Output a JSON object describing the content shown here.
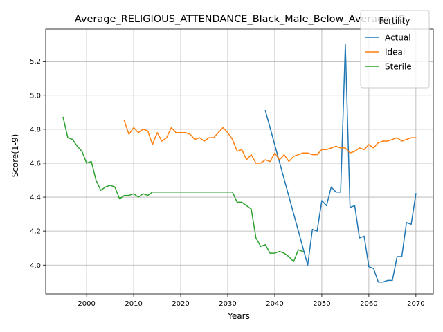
{
  "chart_data": {
    "type": "line",
    "title": "Average_RELIGIOUS_ATTENDANCE_Black_Male_Below_Average_IQ",
    "xlabel": "Years",
    "ylabel": "Score(1-9)",
    "xlim": [
      1991.3,
      2073.7
    ],
    "ylim": [
      3.83,
      5.39
    ],
    "xticks": [
      2000,
      2010,
      2020,
      2030,
      2040,
      2050,
      2060,
      2070
    ],
    "yticks": [
      4.0,
      4.2,
      4.4,
      4.6,
      4.8,
      5.0,
      5.2
    ],
    "ytick_labels": [
      "4.0",
      "4.2",
      "4.4",
      "4.6",
      "4.8",
      "5.0",
      "5.2"
    ],
    "grid": true,
    "legend": {
      "title": "Fertility",
      "position": "top-right"
    },
    "series": [
      {
        "name": "Actual",
        "color": "#1f77b4",
        "x": [
          2038,
          2047,
          2048,
          2049,
          2050,
          2051,
          2052,
          2053,
          2054,
          2055,
          2056,
          2057,
          2058,
          2059,
          2060,
          2061,
          2062,
          2063,
          2064,
          2065,
          2066,
          2067,
          2068,
          2069,
          2070
        ],
        "y": [
          4.91,
          4.0,
          4.21,
          4.2,
          4.38,
          4.35,
          4.46,
          4.43,
          4.43,
          5.3,
          4.34,
          4.35,
          4.16,
          4.17,
          3.99,
          3.98,
          3.9,
          3.9,
          3.91,
          3.91,
          4.05,
          4.05,
          4.25,
          4.24,
          4.42
        ]
      },
      {
        "name": "Ideal",
        "color": "#ff7f0e",
        "x": [
          2008,
          2009,
          2010,
          2011,
          2012,
          2013,
          2014,
          2015,
          2016,
          2017,
          2018,
          2019,
          2020,
          2021,
          2022,
          2023,
          2024,
          2025,
          2026,
          2027,
          2028,
          2029,
          2030,
          2031,
          2032,
          2033,
          2034,
          2035,
          2036,
          2037,
          2038,
          2039,
          2040,
          2041,
          2042,
          2043,
          2044,
          2045,
          2046,
          2047,
          2048,
          2049,
          2050,
          2051,
          2052,
          2053,
          2054,
          2055,
          2056,
          2057,
          2058,
          2059,
          2060,
          2061,
          2062,
          2063,
          2064,
          2065,
          2066,
          2067,
          2068,
          2069,
          2070
        ],
        "y": [
          4.85,
          4.77,
          4.81,
          4.78,
          4.8,
          4.79,
          4.71,
          4.78,
          4.73,
          4.75,
          4.81,
          4.78,
          4.78,
          4.78,
          4.77,
          4.74,
          4.75,
          4.73,
          4.75,
          4.75,
          4.78,
          4.81,
          4.78,
          4.74,
          4.67,
          4.68,
          4.62,
          4.65,
          4.6,
          4.6,
          4.62,
          4.61,
          4.66,
          4.62,
          4.65,
          4.61,
          4.64,
          4.65,
          4.66,
          4.66,
          4.65,
          4.65,
          4.68,
          4.68,
          4.69,
          4.7,
          4.69,
          4.69,
          4.66,
          4.67,
          4.69,
          4.68,
          4.71,
          4.69,
          4.72,
          4.73,
          4.73,
          4.74,
          4.75,
          4.73,
          4.74,
          4.75,
          4.75
        ]
      },
      {
        "name": "Sterile",
        "color": "#2ca02c",
        "x": [
          1995,
          1996,
          1997,
          1998,
          1999,
          2000,
          2001,
          2002,
          2003,
          2004,
          2005,
          2006,
          2007,
          2008,
          2009,
          2010,
          2011,
          2012,
          2013,
          2014,
          2015,
          2016,
          2017,
          2018,
          2019,
          2020,
          2021,
          2022,
          2023,
          2024,
          2025,
          2026,
          2027,
          2028,
          2029,
          2030,
          2031,
          2032,
          2033,
          2034,
          2035,
          2036,
          2037,
          2038,
          2039,
          2040,
          2041,
          2042,
          2043,
          2044,
          2045,
          2046
        ],
        "y": [
          4.87,
          4.75,
          4.74,
          4.7,
          4.67,
          4.6,
          4.61,
          4.5,
          4.44,
          4.46,
          4.47,
          4.46,
          4.39,
          4.41,
          4.41,
          4.42,
          4.4,
          4.42,
          4.41,
          4.43,
          4.43,
          4.43,
          4.43,
          4.43,
          4.43,
          4.43,
          4.43,
          4.43,
          4.43,
          4.43,
          4.43,
          4.43,
          4.43,
          4.43,
          4.43,
          4.43,
          4.43,
          4.37,
          4.37,
          4.35,
          4.33,
          4.16,
          4.11,
          4.12,
          4.07,
          4.07,
          4.08,
          4.07,
          4.05,
          4.02,
          4.09,
          4.08
        ]
      }
    ]
  }
}
